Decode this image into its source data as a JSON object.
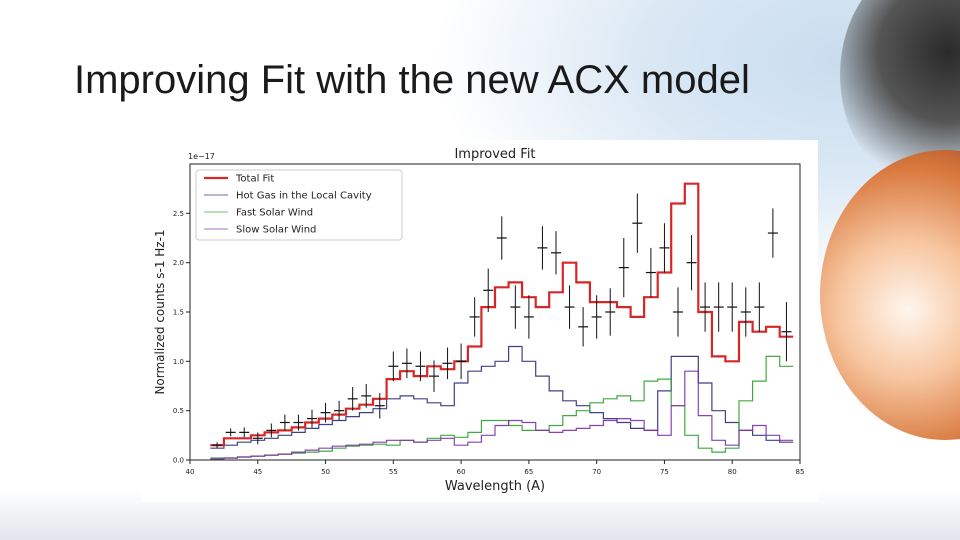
{
  "slide": {
    "title": "Improving Fit with the new ACX model"
  },
  "chart_data": {
    "type": "line",
    "title": "Improved Fit",
    "xlabel": "Wavelength (A)",
    "ylabel": "Normalized counts  s-1  Hz-1",
    "y_offset_label": "1e−17",
    "xlim": [
      40,
      85
    ],
    "ylim": [
      0,
      3.0
    ],
    "x_ticks": [
      40,
      45,
      50,
      55,
      60,
      65,
      70,
      75,
      80,
      85
    ],
    "x_tick_labels": [
      "40",
      "45",
      "50",
      "55",
      "60",
      "65",
      "70",
      "75",
      "80",
      "85"
    ],
    "y_ticks": [
      0.0,
      0.5,
      1.0,
      1.5,
      2.0,
      2.5
    ],
    "y_tick_labels": [
      "0.0",
      "0.5",
      "1.0",
      "1.5",
      "2.0",
      "2.5"
    ],
    "legend_position": "upper-left",
    "x": [
      42,
      43,
      44,
      45,
      46,
      47,
      48,
      49,
      50,
      51,
      52,
      53,
      54,
      55,
      56,
      57,
      58,
      59,
      60,
      61,
      62,
      63,
      64,
      65,
      66,
      67,
      68,
      69,
      70,
      71,
      72,
      73,
      74,
      75,
      76,
      77,
      78,
      79,
      80,
      81,
      82,
      83,
      84
    ],
    "series": [
      {
        "name": "Total Fit",
        "color": "#d62728",
        "step": true,
        "values": [
          0.15,
          0.22,
          0.22,
          0.25,
          0.28,
          0.3,
          0.33,
          0.38,
          0.42,
          0.46,
          0.52,
          0.56,
          0.62,
          0.82,
          0.9,
          0.85,
          0.95,
          0.92,
          1.0,
          1.15,
          1.55,
          1.75,
          1.8,
          1.65,
          1.55,
          1.7,
          2.0,
          1.8,
          1.6,
          1.6,
          1.55,
          1.45,
          1.65,
          1.9,
          2.6,
          2.8,
          1.5,
          1.05,
          1.0,
          1.4,
          1.3,
          1.35,
          1.25
        ]
      },
      {
        "name": "Hot Gas in the Local Cavity",
        "color": "#2b2b7a",
        "step": true,
        "values": [
          0.12,
          0.15,
          0.18,
          0.2,
          0.22,
          0.25,
          0.28,
          0.32,
          0.36,
          0.4,
          0.44,
          0.48,
          0.52,
          0.62,
          0.65,
          0.62,
          0.58,
          0.55,
          0.78,
          0.9,
          0.95,
          1.0,
          1.15,
          1.0,
          0.85,
          0.7,
          0.6,
          0.55,
          0.48,
          0.42,
          0.38,
          0.32,
          0.3,
          0.7,
          1.05,
          1.05,
          0.78,
          0.5,
          0.38,
          0.3,
          0.25,
          0.2,
          0.18
        ]
      },
      {
        "name": "Fast Solar Wind",
        "color": "#2ca02c",
        "step": true,
        "values": [
          0.02,
          0.02,
          0.03,
          0.04,
          0.05,
          0.06,
          0.07,
          0.08,
          0.09,
          0.12,
          0.14,
          0.15,
          0.16,
          0.15,
          0.2,
          0.18,
          0.22,
          0.25,
          0.23,
          0.28,
          0.4,
          0.4,
          0.35,
          0.3,
          0.3,
          0.35,
          0.45,
          0.5,
          0.58,
          0.62,
          0.65,
          0.6,
          0.8,
          0.82,
          0.55,
          0.25,
          0.12,
          0.08,
          0.12,
          0.6,
          0.8,
          1.05,
          0.95
        ]
      },
      {
        "name": "Slow Solar Wind",
        "color": "#7b2fa8",
        "step": true,
        "values": [
          0.01,
          0.02,
          0.03,
          0.04,
          0.05,
          0.06,
          0.08,
          0.1,
          0.12,
          0.14,
          0.15,
          0.16,
          0.18,
          0.2,
          0.2,
          0.18,
          0.2,
          0.22,
          0.15,
          0.18,
          0.25,
          0.35,
          0.4,
          0.38,
          0.3,
          0.28,
          0.3,
          0.32,
          0.35,
          0.4,
          0.42,
          0.4,
          0.3,
          0.25,
          0.55,
          0.9,
          0.45,
          0.2,
          0.15,
          0.3,
          0.35,
          0.25,
          0.2
        ]
      }
    ],
    "data_points": {
      "x": [
        42,
        43,
        44,
        45,
        46,
        47,
        48,
        49,
        50,
        51,
        52,
        53,
        54,
        55,
        56,
        57,
        58,
        59,
        60,
        61,
        62,
        63,
        64,
        65,
        66,
        67,
        68,
        69,
        70,
        71,
        72,
        73,
        74,
        75,
        76,
        77,
        78,
        79,
        80,
        81,
        82,
        83,
        84
      ],
      "y": [
        0.15,
        0.28,
        0.28,
        0.22,
        0.3,
        0.38,
        0.38,
        0.42,
        0.48,
        0.5,
        0.62,
        0.65,
        0.55,
        0.95,
        0.98,
        0.95,
        0.85,
        0.98,
        1.0,
        1.45,
        1.72,
        2.25,
        1.55,
        1.45,
        2.15,
        2.1,
        1.55,
        1.35,
        1.45,
        1.5,
        1.95,
        2.4,
        1.9,
        2.15,
        1.5,
        2.0,
        1.55,
        1.55,
        1.55,
        1.5,
        1.55,
        2.3,
        1.3
      ],
      "err": [
        0.03,
        0.04,
        0.05,
        0.06,
        0.07,
        0.08,
        0.08,
        0.09,
        0.1,
        0.1,
        0.12,
        0.12,
        0.13,
        0.15,
        0.15,
        0.15,
        0.16,
        0.16,
        0.18,
        0.2,
        0.22,
        0.22,
        0.22,
        0.22,
        0.22,
        0.22,
        0.22,
        0.2,
        0.22,
        0.24,
        0.3,
        0.3,
        0.25,
        0.25,
        0.25,
        0.28,
        0.25,
        0.25,
        0.25,
        0.25,
        0.25,
        0.25,
        0.3
      ]
    }
  }
}
